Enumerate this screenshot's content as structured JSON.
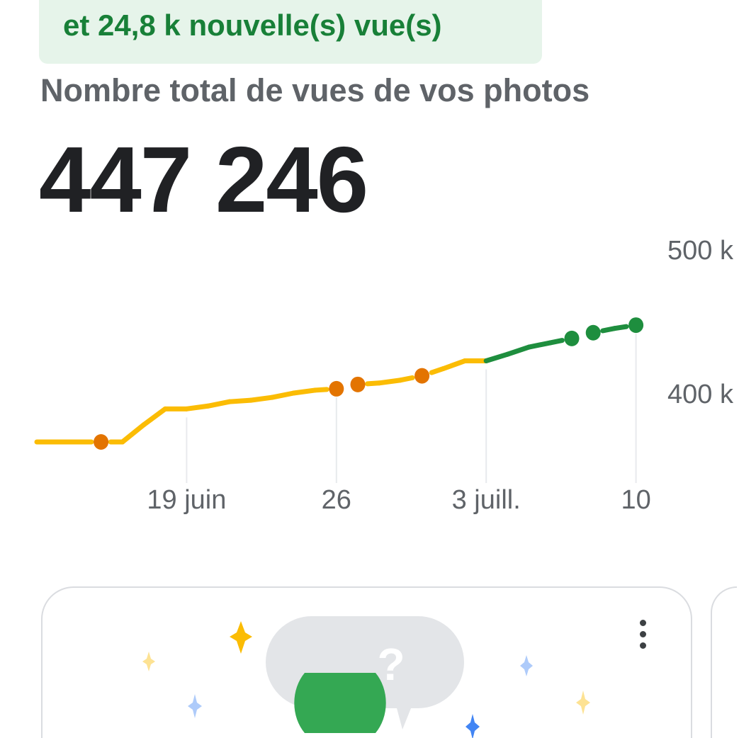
{
  "banner": {
    "text": "et 24,8 k nouvelle(s) vue(s)"
  },
  "header": {
    "title": "Nombre total de vues de vos photos",
    "total": "447 246"
  },
  "colors": {
    "past": "#fbbc04",
    "recent": "#1e8e3e",
    "no_data_dot_past": "#e37400",
    "banner_bg": "#e6f4ea",
    "banner_text": "#188038"
  },
  "chart_data": {
    "type": "line",
    "y_ticks": [
      "500 k",
      "400 k"
    ],
    "y_tick_values": [
      500000,
      400000
    ],
    "x_ticks": [
      "19 juin",
      "26",
      "3 juill.",
      "10"
    ],
    "x_tick_dates": [
      "06-19",
      "06-26",
      "07-03",
      "07-10"
    ],
    "ylim": [
      340000,
      520000
    ],
    "grid": "vertical at ticks",
    "y_axis_position": "right",
    "points": [
      {
        "date": "06-12",
        "value": 366000,
        "dot": false
      },
      {
        "date": "06-13",
        "value": 366000,
        "dot": false
      },
      {
        "date": "06-14",
        "value": 366000,
        "dot": false
      },
      {
        "date": "06-15",
        "value": 366000,
        "dot": true
      },
      {
        "date": "06-16",
        "value": 366000,
        "dot": false
      },
      {
        "date": "06-17",
        "value": 378000,
        "dot": false
      },
      {
        "date": "06-18",
        "value": 389000,
        "dot": false
      },
      {
        "date": "06-19",
        "value": 389000,
        "dot": false
      },
      {
        "date": "06-20",
        "value": 391000,
        "dot": false
      },
      {
        "date": "06-21",
        "value": 394000,
        "dot": false
      },
      {
        "date": "06-22",
        "value": 395000,
        "dot": false
      },
      {
        "date": "06-23",
        "value": 397000,
        "dot": false
      },
      {
        "date": "06-24",
        "value": 400000,
        "dot": false
      },
      {
        "date": "06-25",
        "value": 402000,
        "dot": false
      },
      {
        "date": "06-26",
        "value": 403000,
        "dot": true
      },
      {
        "date": "06-27",
        "value": 406000,
        "dot": true
      },
      {
        "date": "06-28",
        "value": 407000,
        "dot": false
      },
      {
        "date": "06-29",
        "value": 409000,
        "dot": false
      },
      {
        "date": "06-30",
        "value": 412000,
        "dot": true
      },
      {
        "date": "07-01",
        "value": 417000,
        "dot": false
      },
      {
        "date": "07-02",
        "value": 422400,
        "dot": false
      },
      {
        "date": "07-03",
        "value": 422400,
        "dot": false
      },
      {
        "date": "07-04",
        "value": 427000,
        "dot": false
      },
      {
        "date": "07-05",
        "value": 432000,
        "dot": false
      },
      {
        "date": "07-06",
        "value": 435000,
        "dot": false
      },
      {
        "date": "07-07",
        "value": 438000,
        "dot": true
      },
      {
        "date": "07-08",
        "value": 442000,
        "dot": true
      },
      {
        "date": "07-09",
        "value": 445000,
        "dot": false
      },
      {
        "date": "07-10",
        "value": 447246,
        "dot": true
      }
    ],
    "recent_from": "07-03"
  },
  "card": {
    "menu_icon": "more-vert-icon",
    "illustration": "question-chat-bubbles"
  }
}
